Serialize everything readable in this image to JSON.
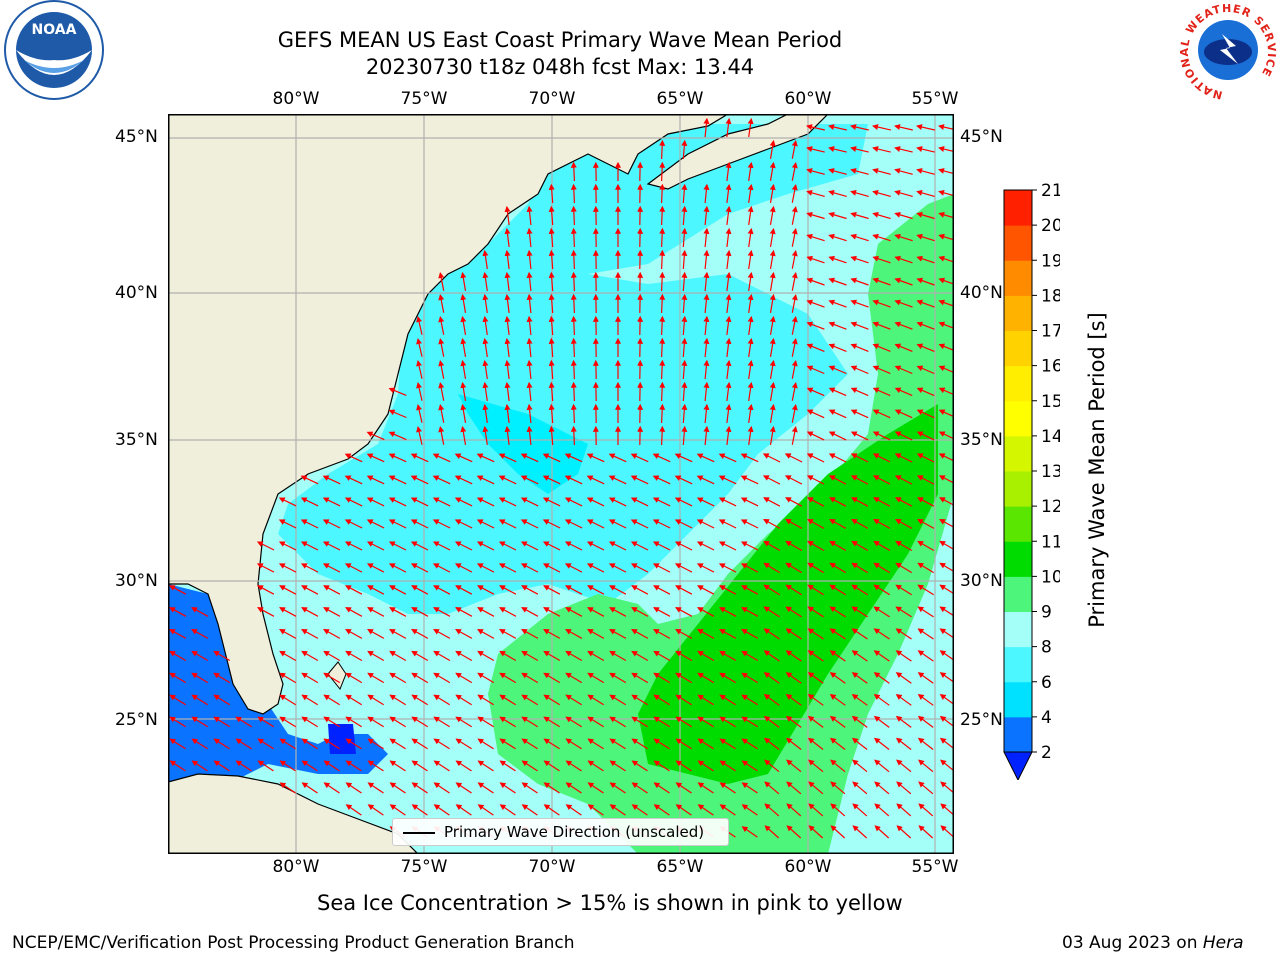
{
  "title": {
    "line1": "GEFS MEAN US East Coast Primary Wave Mean Period",
    "line2": "20230730 t18z 048h fcst   Max: 13.44"
  },
  "logos": {
    "left": {
      "icon": "noaa-logo",
      "text": "NOAA"
    },
    "right": {
      "icon": "nws-logo",
      "ring_text": "NATIONAL WEATHER SERVICE"
    }
  },
  "axes": {
    "lon_labels": [
      "80°W",
      "75°W",
      "70°W",
      "65°W",
      "60°W",
      "55°W"
    ],
    "lat_labels": [
      "45°N",
      "40°N",
      "35°N",
      "30°N",
      "25°N"
    ],
    "lon_range": [
      -85,
      -54.5
    ],
    "lat_range": [
      20,
      46
    ],
    "lon_ticks": [
      -80,
      -75,
      -70,
      -65,
      -60,
      -55
    ],
    "lat_ticks": [
      45,
      40,
      35,
      30,
      25
    ],
    "grid": true
  },
  "legend": {
    "line_label": "Primary Wave Direction (unscaled)"
  },
  "colorbar": {
    "label": "Primary Wave Mean Period [s]",
    "ticks": [
      "2",
      "4",
      "6",
      "8",
      "9",
      "10",
      "11",
      "12",
      "13",
      "14",
      "15",
      "16",
      "17",
      "18",
      "19",
      "20",
      "21"
    ],
    "colors": [
      "#0a73ff",
      "#00e1ff",
      "#4df7ff",
      "#a5fff9",
      "#4df57a",
      "#00dc00",
      "#5ae600",
      "#a8ef00",
      "#d4f700",
      "#ffff00",
      "#ffee00",
      "#ffd200",
      "#ffb300",
      "#ff8c00",
      "#ff5500",
      "#ff2000"
    ],
    "under_color": "#0022ff",
    "extend": "min"
  },
  "notes": {
    "sea_ice": "Sea Ice Concentration > 15% is shown in pink to yellow",
    "branch": "NCEP/EMC/Verification Post Processing Product Generation Branch",
    "date_prefix": "03 Aug 2023 on ",
    "host": "Hera"
  },
  "colors": {
    "land": "#efefdc",
    "coast": "#000000",
    "grid": "#b0b0b0",
    "arrow": "#ff0000",
    "noaa_blue": "#1e5aa8",
    "nws_red": "#e2231a"
  }
}
